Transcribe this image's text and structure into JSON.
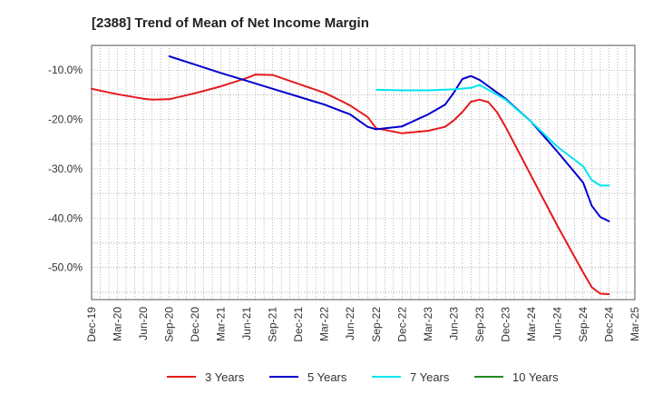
{
  "chart_data": {
    "type": "line",
    "title": "[2388]  Trend of Mean of Net Income Margin",
    "xlabel": "",
    "ylabel": "",
    "x_ticks": [
      "Dec-19",
      "Mar-20",
      "Jun-20",
      "Sep-20",
      "Dec-20",
      "Mar-21",
      "Jun-21",
      "Sep-21",
      "Dec-21",
      "Mar-22",
      "Jun-22",
      "Sep-22",
      "Dec-22",
      "Mar-23",
      "Jun-23",
      "Sep-23",
      "Dec-23",
      "Mar-24",
      "Jun-24",
      "Sep-24",
      "Dec-24",
      "Mar-25"
    ],
    "y_ticks": [
      "-10.0%",
      "-20.0%",
      "-30.0%",
      "-40.0%",
      "-50.0%"
    ],
    "y_tick_values": [
      -10,
      -20,
      -30,
      -40,
      -50
    ],
    "ylim": [
      -56.5,
      -5
    ],
    "grid": true,
    "legend_position": "bottom",
    "series": [
      {
        "name": "3 Years",
        "color": "#e41a1c",
        "x": [
          "Dec-19",
          "Mar-20",
          "Jun-20",
          "Jul-20",
          "Sep-20",
          "Dec-20",
          "Mar-21",
          "Jun-21",
          "Jul-21",
          "Sep-21",
          "Dec-21",
          "Mar-22",
          "May-22",
          "Jun-22",
          "Aug-22",
          "Sep-22",
          "Dec-22",
          "Mar-23",
          "May-23",
          "Jun-23",
          "Jul-23",
          "Aug-23",
          "Sep-23",
          "Oct-23",
          "Nov-23",
          "Dec-23",
          "Mar-24",
          "Jun-24",
          "Sep-24",
          "Oct-24",
          "Nov-24",
          "Dec-24"
        ],
        "values": [
          -13.8,
          -14.9,
          -15.8,
          -16.0,
          -15.9,
          -14.7,
          -13.3,
          -11.6,
          -10.9,
          -11.0,
          -12.8,
          -14.6,
          -16.3,
          -17.2,
          -19.5,
          -21.8,
          -22.8,
          -22.3,
          -21.5,
          -20.2,
          -18.5,
          -16.4,
          -16.0,
          -16.5,
          -18.5,
          -21.5,
          -31.5,
          -41.5,
          -51.0,
          -54.0,
          -55.3,
          -55.4
        ]
      },
      {
        "name": "5 Years",
        "color": "#0000cd",
        "x": [
          "Sep-20",
          "Dec-20",
          "Mar-21",
          "Jun-21",
          "Sep-21",
          "Dec-21",
          "Mar-22",
          "Jun-22",
          "Aug-22",
          "Sep-22",
          "Dec-22",
          "Mar-23",
          "May-23",
          "Jun-23",
          "Jul-23",
          "Aug-23",
          "Sep-23",
          "Dec-23",
          "Mar-24",
          "Jun-24",
          "Sep-24",
          "Oct-24",
          "Nov-24",
          "Dec-24"
        ],
        "values": [
          -7.2,
          -8.9,
          -10.6,
          -12.2,
          -13.8,
          -15.4,
          -17.0,
          -19.0,
          -21.5,
          -22.0,
          -21.4,
          -19.0,
          -17.0,
          -14.6,
          -11.8,
          -11.2,
          -12.0,
          -15.8,
          -20.5,
          -26.5,
          -32.8,
          -37.5,
          -39.8,
          -40.6
        ]
      },
      {
        "name": "7 Years",
        "color": "#00e5ee",
        "x": [
          "Sep-22",
          "Dec-22",
          "Mar-23",
          "Jun-23",
          "Aug-23",
          "Sep-23",
          "Oct-23",
          "Dec-23",
          "Mar-24",
          "Jun-24",
          "Sep-24",
          "Oct-24",
          "Nov-24",
          "Dec-24"
        ],
        "values": [
          -14.0,
          -14.1,
          -14.1,
          -13.9,
          -13.6,
          -13.0,
          -14.0,
          -16.0,
          -20.5,
          -25.5,
          -29.5,
          -32.3,
          -33.4,
          -33.4
        ]
      },
      {
        "name": "10 Years",
        "color": "#228b22",
        "x": [],
        "values": []
      }
    ]
  }
}
